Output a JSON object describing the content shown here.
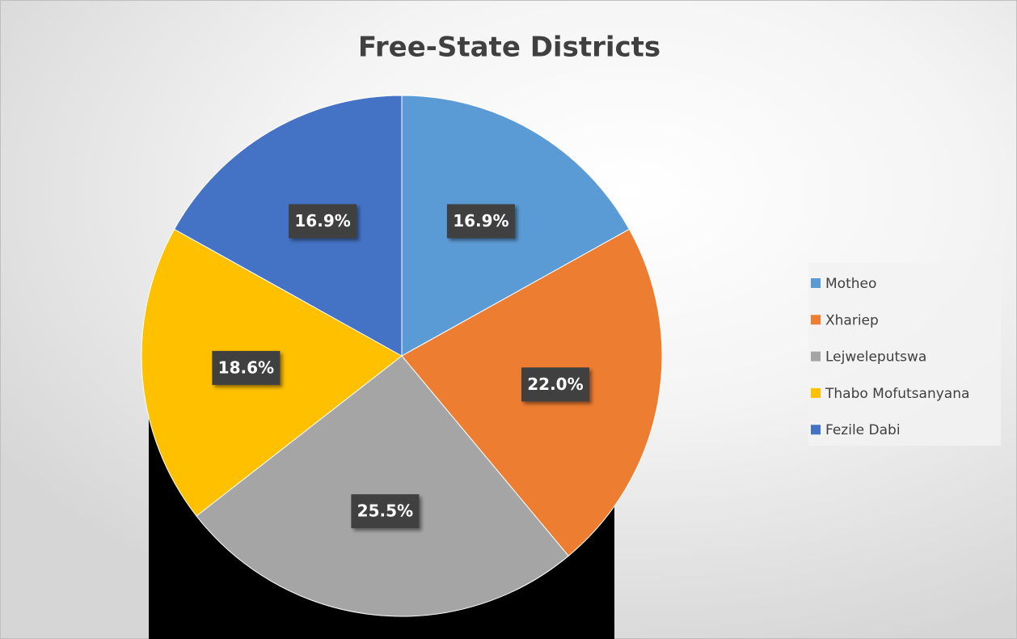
{
  "chart_data": {
    "type": "pie",
    "title": "Free-State Districts",
    "categories": [
      "Motheo",
      "Xhariep",
      "Lejweleputswa",
      "Thabo Mofutsanyana",
      "Fezile Dabi"
    ],
    "values": [
      16.9,
      22.0,
      25.5,
      18.6,
      16.9
    ],
    "value_labels": [
      "16.9%",
      "22.0%",
      "25.5%",
      "18.6%",
      "16.9%"
    ],
    "colors": [
      "#5b9bd5",
      "#ed7d31",
      "#a5a5a5",
      "#ffc000",
      "#4472c4"
    ],
    "legend": "right"
  }
}
